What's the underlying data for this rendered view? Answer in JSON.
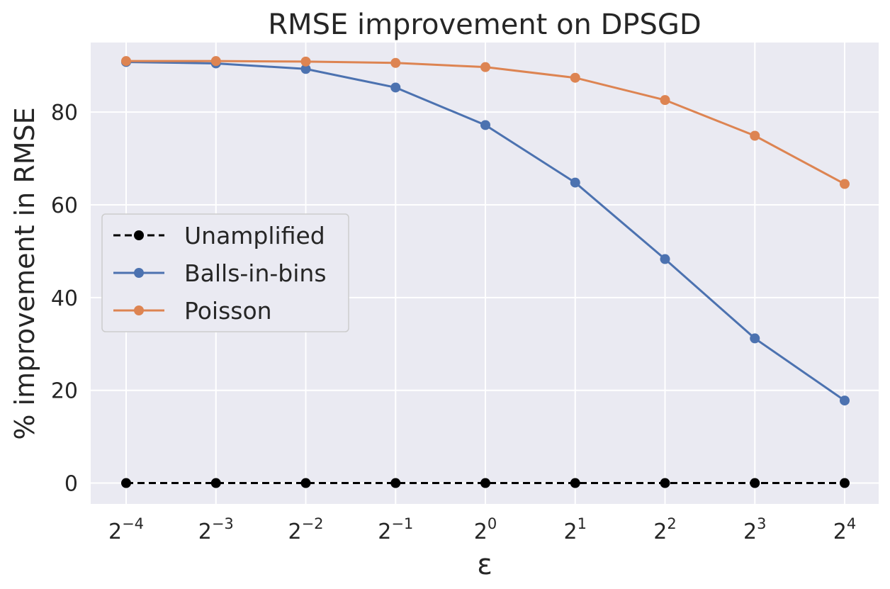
{
  "chart_data": {
    "type": "line",
    "title": "RMSE improvement on DPSGD",
    "xlabel": "ε",
    "ylabel": "% improvement in RMSE",
    "x_scale": "log2",
    "x_exponents": [
      -4,
      -3,
      -2,
      -1,
      0,
      1,
      2,
      3,
      4
    ],
    "x_tick_base": "2",
    "x_tick_exponents": [
      "−4",
      "−3",
      "−2",
      "−1",
      "0",
      "1",
      "2",
      "3",
      "4"
    ],
    "ylim": [
      -4.5,
      95
    ],
    "y_ticks": [
      0,
      20,
      40,
      60,
      80
    ],
    "y_tick_labels": [
      "0",
      "20",
      "40",
      "60",
      "80"
    ],
    "grid": true,
    "legend_position": "center-left",
    "series": [
      {
        "name": "Unamplified",
        "color": "#000000",
        "dashed": true,
        "values": [
          0,
          0,
          0,
          0,
          0,
          0,
          0,
          0,
          0
        ]
      },
      {
        "name": "Balls-in-bins",
        "color": "#4c72b0",
        "dashed": false,
        "values": [
          90.8,
          90.5,
          89.3,
          85.3,
          77.2,
          64.8,
          48.3,
          31.2,
          17.8
        ]
      },
      {
        "name": "Poisson",
        "color": "#dd8452",
        "dashed": false,
        "values": [
          91.0,
          91.0,
          90.9,
          90.6,
          89.7,
          87.4,
          82.6,
          74.9,
          64.5
        ]
      }
    ]
  }
}
